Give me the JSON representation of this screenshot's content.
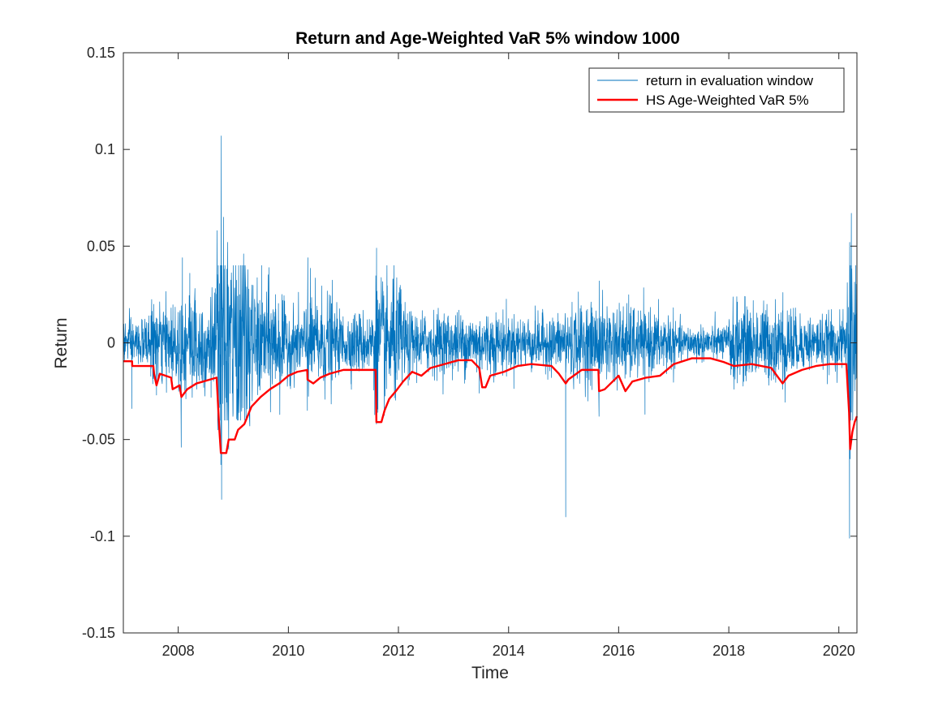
{
  "chart_data": {
    "type": "line",
    "title": "Return and Age-Weighted VaR 5% window 1000",
    "xlabel": "Time",
    "ylabel": "Return",
    "xlim": [
      "2007-01-02",
      "2020-04-30"
    ],
    "ylim": [
      -0.15,
      0.15
    ],
    "x_ticks": [
      "2008",
      "2010",
      "2012",
      "2014",
      "2016",
      "2018",
      "2020"
    ],
    "y_ticks": [
      "0.15",
      "0.1",
      "0.05",
      "0",
      "-0.05",
      "-0.1",
      "-0.15"
    ],
    "grid": false,
    "legend_position": "top-right",
    "series": [
      {
        "name": "return in evaluation window",
        "color": "#0072BD",
        "note": "daily returns (noisy), key extremes listed",
        "points": [
          [
            "2007-01-02",
            0.014
          ],
          [
            "2007-02-27",
            -0.034
          ],
          [
            "2007-08-10",
            -0.027
          ],
          [
            "2008-01-21",
            -0.054
          ],
          [
            "2008-01-29",
            0.044
          ],
          [
            "2008-03-18",
            0.036
          ],
          [
            "2008-09-15",
            0.058
          ],
          [
            "2008-09-19",
            -0.045
          ],
          [
            "2008-10-10",
            -0.063
          ],
          [
            "2008-10-13",
            0.107
          ],
          [
            "2008-10-15",
            -0.081
          ],
          [
            "2008-10-28",
            0.065
          ],
          [
            "2008-11-24",
            0.052
          ],
          [
            "2008-12-01",
            -0.055
          ],
          [
            "2009-03-10",
            0.046
          ],
          [
            "2009-04-20",
            -0.043
          ],
          [
            "2010-05-07",
            -0.035
          ],
          [
            "2010-05-10",
            0.044
          ],
          [
            "2011-08-08",
            -0.042
          ],
          [
            "2011-08-09",
            0.049
          ],
          [
            "2011-08-18",
            -0.036
          ],
          [
            "2011-11-30",
            0.033
          ],
          [
            "2012-03-06",
            -0.022
          ],
          [
            "2013-06-20",
            -0.026
          ],
          [
            "2014-10-13",
            -0.018
          ],
          [
            "2015-01-15",
            -0.09
          ],
          [
            "2015-08-24",
            -0.038
          ],
          [
            "2015-08-26",
            0.032
          ],
          [
            "2016-06-24",
            -0.037
          ],
          [
            "2018-02-05",
            -0.024
          ],
          [
            "2018-12-24",
            -0.024
          ],
          [
            "2018-12-26",
            0.026
          ],
          [
            "2020-03-12",
            -0.101
          ],
          [
            "2020-03-13",
            0.052
          ],
          [
            "2020-03-16",
            -0.06
          ],
          [
            "2020-03-24",
            0.067
          ],
          [
            "2020-04-30",
            -0.02
          ]
        ]
      },
      {
        "name": "HS Age-Weighted VaR 5%",
        "color": "#FF0000",
        "points": [
          [
            "2007-01-02",
            -0.0095
          ],
          [
            "2007-03-01",
            -0.0095
          ],
          [
            "2007-03-02",
            -0.012
          ],
          [
            "2007-07-20",
            -0.012
          ],
          [
            "2007-07-25",
            -0.016
          ],
          [
            "2007-08-10",
            -0.022
          ],
          [
            "2007-09-01",
            -0.016
          ],
          [
            "2007-11-15",
            -0.018
          ],
          [
            "2007-11-25",
            -0.024
          ],
          [
            "2008-01-10",
            -0.022
          ],
          [
            "2008-01-22",
            -0.028
          ],
          [
            "2008-03-01",
            -0.024
          ],
          [
            "2008-05-01",
            -0.021
          ],
          [
            "2008-06-15",
            -0.02
          ],
          [
            "2008-09-12",
            -0.018
          ],
          [
            "2008-09-30",
            -0.045
          ],
          [
            "2008-10-10",
            -0.057
          ],
          [
            "2008-11-15",
            -0.057
          ],
          [
            "2008-12-01",
            -0.05
          ],
          [
            "2009-01-10",
            -0.05
          ],
          [
            "2009-02-01",
            -0.045
          ],
          [
            "2009-03-15",
            -0.042
          ],
          [
            "2009-05-01",
            -0.033
          ],
          [
            "2009-07-01",
            -0.028
          ],
          [
            "2009-09-01",
            -0.024
          ],
          [
            "2009-11-01",
            -0.021
          ],
          [
            "2010-01-01",
            -0.017
          ],
          [
            "2010-03-01",
            -0.015
          ],
          [
            "2010-05-06",
            -0.014
          ],
          [
            "2010-05-08",
            -0.019
          ],
          [
            "2010-06-15",
            -0.021
          ],
          [
            "2010-08-01",
            -0.018
          ],
          [
            "2010-10-01",
            -0.016
          ],
          [
            "2011-01-01",
            -0.014
          ],
          [
            "2011-03-15",
            -0.014
          ],
          [
            "2011-08-03",
            -0.014
          ],
          [
            "2011-08-08",
            -0.041
          ],
          [
            "2011-09-10",
            -0.041
          ],
          [
            "2011-10-01",
            -0.035
          ],
          [
            "2011-11-01",
            -0.029
          ],
          [
            "2011-12-15",
            -0.025
          ],
          [
            "2012-02-01",
            -0.02
          ],
          [
            "2012-04-01",
            -0.015
          ],
          [
            "2012-06-01",
            -0.017
          ],
          [
            "2012-08-01",
            -0.013
          ],
          [
            "2012-11-01",
            -0.011
          ],
          [
            "2013-02-01",
            -0.009
          ],
          [
            "2013-05-01",
            -0.009
          ],
          [
            "2013-06-20",
            -0.013
          ],
          [
            "2013-07-10",
            -0.023
          ],
          [
            "2013-08-01",
            -0.023
          ],
          [
            "2013-09-01",
            -0.017
          ],
          [
            "2013-12-01",
            -0.015
          ],
          [
            "2014-03-01",
            -0.012
          ],
          [
            "2014-06-01",
            -0.011
          ],
          [
            "2014-10-13",
            -0.012
          ],
          [
            "2014-12-01",
            -0.016
          ],
          [
            "2015-01-15",
            -0.021
          ],
          [
            "2015-02-01",
            -0.019
          ],
          [
            "2015-05-01",
            -0.014
          ],
          [
            "2015-08-20",
            -0.014
          ],
          [
            "2015-08-24",
            -0.025
          ],
          [
            "2015-10-01",
            -0.024
          ],
          [
            "2016-01-01",
            -0.017
          ],
          [
            "2016-02-15",
            -0.025
          ],
          [
            "2016-04-01",
            -0.02
          ],
          [
            "2016-07-01",
            -0.018
          ],
          [
            "2016-10-01",
            -0.017
          ],
          [
            "2017-01-01",
            -0.011
          ],
          [
            "2017-05-01",
            -0.008
          ],
          [
            "2017-09-01",
            -0.008
          ],
          [
            "2017-12-01",
            -0.01
          ],
          [
            "2018-02-05",
            -0.012
          ],
          [
            "2018-06-01",
            -0.011
          ],
          [
            "2018-10-10",
            -0.013
          ],
          [
            "2018-12-24",
            -0.021
          ],
          [
            "2019-02-01",
            -0.017
          ],
          [
            "2019-05-01",
            -0.014
          ],
          [
            "2019-08-01",
            -0.012
          ],
          [
            "2019-11-01",
            -0.011
          ],
          [
            "2020-02-20",
            -0.011
          ],
          [
            "2020-03-09",
            -0.036
          ],
          [
            "2020-03-16",
            -0.055
          ],
          [
            "2020-03-31",
            -0.046
          ],
          [
            "2020-04-15",
            -0.041
          ],
          [
            "2020-04-30",
            -0.038
          ]
        ]
      }
    ]
  }
}
